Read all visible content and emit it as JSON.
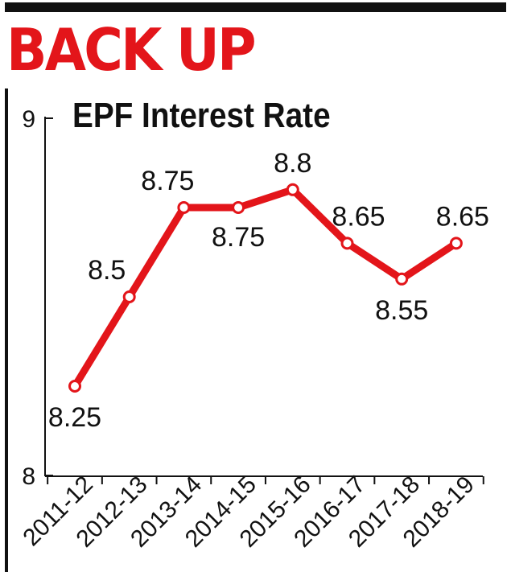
{
  "headline": "BACK UP",
  "chart_data": {
    "type": "line",
    "title": "EPF Interest Rate",
    "xlabel": "",
    "ylabel": "",
    "categories": [
      "2011-12",
      "2012-13",
      "2013-14",
      "2014-15",
      "2015-16",
      "2016-17",
      "2017-18",
      "2018-19"
    ],
    "values": [
      8.25,
      8.5,
      8.75,
      8.75,
      8.8,
      8.65,
      8.55,
      8.65
    ],
    "value_labels": [
      "8.25",
      "8.5",
      "8.75",
      "8.75",
      "8.8",
      "8.65",
      "8.55",
      "8.65"
    ],
    "ylim": [
      8,
      9
    ],
    "yticks": [
      "8",
      "9"
    ],
    "grid": false,
    "line_color": "#e3151a",
    "headline_color": "#e3151a"
  }
}
